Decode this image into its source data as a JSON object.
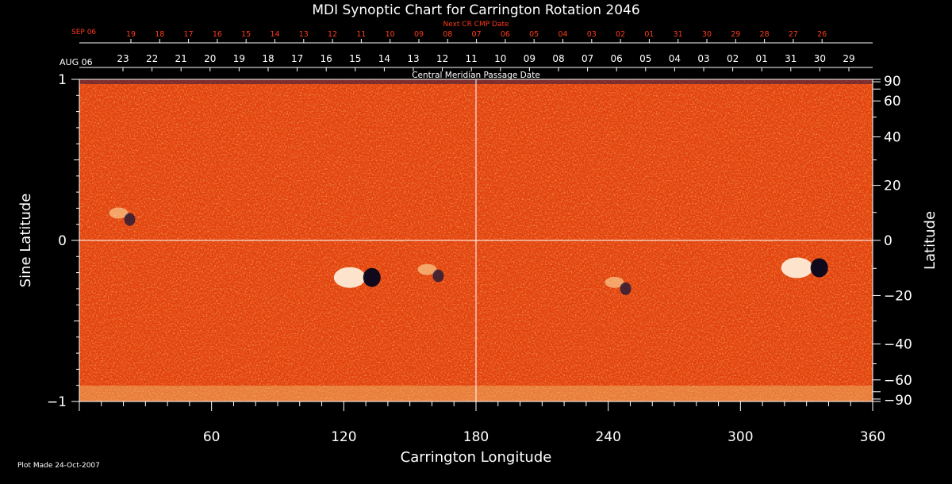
{
  "chart_data": {
    "type": "heatmap",
    "title": "MDI Synoptic Chart for Carrington Rotation 2046",
    "xlabel": "Carrington Longitude",
    "ylabel_left": "Sine Latitude",
    "ylabel_right": "Latitude",
    "xlim": [
      0,
      360
    ],
    "ylim": [
      -1,
      1
    ],
    "x_ticks": [
      "60",
      "120",
      "180",
      "240",
      "300",
      "360"
    ],
    "x_tick_values": [
      60,
      120,
      180,
      240,
      300,
      360
    ],
    "y_left_ticks": [
      {
        "value": 1,
        "label": "1"
      },
      {
        "value": 0,
        "label": "0"
      },
      {
        "value": -1,
        "label": "−1"
      }
    ],
    "y_right_ticks": [
      {
        "lat": 90,
        "label": "90"
      },
      {
        "lat": 60,
        "label": "60"
      },
      {
        "lat": 40,
        "label": "40"
      },
      {
        "lat": 20,
        "label": "20"
      },
      {
        "lat": 0,
        "label": "0"
      },
      {
        "lat": -20,
        "label": "−20"
      },
      {
        "lat": -40,
        "label": "−40"
      },
      {
        "lat": -60,
        "label": "−60"
      },
      {
        "lat": -90,
        "label": "−90"
      }
    ],
    "cmp_label": "Central Meridian Passage Date",
    "cmp_start_label": "AUG 06",
    "cmp_dates": [
      "23",
      "22",
      "21",
      "20",
      "19",
      "18",
      "17",
      "16",
      "15",
      "14",
      "13",
      "12",
      "11",
      "10",
      "09",
      "08",
      "07",
      "06",
      "05",
      "04",
      "03",
      "02",
      "01",
      "31",
      "30",
      "29"
    ],
    "next_cmp_label": "Next CR CMP Date",
    "next_cmp_start_label": "SEP 06",
    "next_cmp_dates": [
      "19",
      "18",
      "17",
      "16",
      "15",
      "14",
      "13",
      "12",
      "11",
      "10",
      "09",
      "08",
      "07",
      "06",
      "05",
      "04",
      "03",
      "02",
      "01",
      "31",
      "30",
      "29",
      "28",
      "27",
      "26"
    ],
    "grid": {
      "equator": true,
      "central_meridian": 180
    },
    "colors": {
      "background_field": "#e8400c",
      "positive": "#ffffff",
      "negative": "#0a0a40",
      "grid": "#ffffff",
      "top_axis_labels": "#ff3a1a"
    },
    "features": [
      {
        "type": "active-region",
        "longitude": 127,
        "sine_latitude": -0.23,
        "polarity": "bipolar"
      },
      {
        "type": "active-region",
        "longitude": 330,
        "sine_latitude": -0.17,
        "polarity": "bipolar"
      },
      {
        "type": "plage",
        "longitude": 245,
        "sine_latitude": -0.28,
        "polarity": "mixed"
      },
      {
        "type": "plage",
        "longitude": 20,
        "sine_latitude": 0.15,
        "polarity": "mixed"
      },
      {
        "type": "plage",
        "longitude": 160,
        "sine_latitude": -0.2,
        "polarity": "mixed"
      }
    ]
  },
  "footer": {
    "plot_made": "Plot Made 24-Oct-2007"
  }
}
